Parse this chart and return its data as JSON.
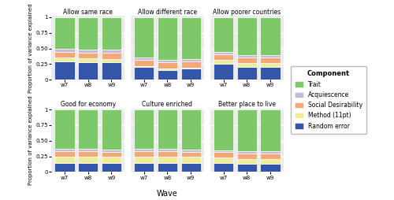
{
  "panels": [
    {
      "title": "Allow same race",
      "waves": [
        "w7",
        "w8",
        "w9"
      ],
      "random_error": [
        0.295,
        0.28,
        0.275
      ],
      "method_11pt": [
        0.06,
        0.06,
        0.06
      ],
      "social_desirability": [
        0.095,
        0.095,
        0.095
      ],
      "acquiescence": [
        0.05,
        0.05,
        0.05
      ],
      "trait": [
        0.5,
        0.515,
        0.52
      ]
    },
    {
      "title": "Allow different race",
      "waves": [
        "w7",
        "w8",
        "w9"
      ],
      "random_error": [
        0.2,
        0.16,
        0.175
      ],
      "method_11pt": [
        0.02,
        0.02,
        0.02
      ],
      "social_desirability": [
        0.095,
        0.095,
        0.095
      ],
      "acquiescence": [
        0.045,
        0.045,
        0.045
      ],
      "trait": [
        0.64,
        0.68,
        0.665
      ]
    },
    {
      "title": "Allow poorer countries",
      "waves": [
        "w7",
        "w8",
        "w9"
      ],
      "random_error": [
        0.25,
        0.2,
        0.2
      ],
      "method_11pt": [
        0.065,
        0.065,
        0.065
      ],
      "social_desirability": [
        0.095,
        0.095,
        0.095
      ],
      "acquiescence": [
        0.03,
        0.03,
        0.03
      ],
      "trait": [
        0.56,
        0.61,
        0.61
      ]
    },
    {
      "title": "Good for economy",
      "waves": [
        "w7",
        "w8",
        "w9"
      ],
      "random_error": [
        0.15,
        0.15,
        0.145
      ],
      "method_11pt": [
        0.095,
        0.095,
        0.095
      ],
      "social_desirability": [
        0.085,
        0.085,
        0.085
      ],
      "acquiescence": [
        0.04,
        0.04,
        0.04
      ],
      "trait": [
        0.63,
        0.63,
        0.635
      ]
    },
    {
      "title": "Culture enriched",
      "waves": [
        "w7",
        "w8",
        "w9"
      ],
      "random_error": [
        0.15,
        0.15,
        0.145
      ],
      "method_11pt": [
        0.095,
        0.095,
        0.095
      ],
      "social_desirability": [
        0.085,
        0.085,
        0.085
      ],
      "acquiescence": [
        0.04,
        0.04,
        0.04
      ],
      "trait": [
        0.63,
        0.63,
        0.635
      ]
    },
    {
      "title": "Better place to live",
      "waves": [
        "w7",
        "w8",
        "w9"
      ],
      "random_error": [
        0.15,
        0.13,
        0.13
      ],
      "method_11pt": [
        0.08,
        0.08,
        0.08
      ],
      "social_desirability": [
        0.085,
        0.085,
        0.085
      ],
      "acquiescence": [
        0.035,
        0.035,
        0.035
      ],
      "trait": [
        0.65,
        0.67,
        0.67
      ]
    }
  ],
  "colors": {
    "random_error": "#3355AA",
    "method_11pt": "#EEEE99",
    "social_desirability": "#F4A878",
    "acquiescence": "#C9B8D8",
    "trait": "#7DC96A"
  },
  "legend_labels": [
    "Trait",
    "Acquiescence",
    "Social Desirability",
    "Method (11pt)",
    "Random error"
  ],
  "legend_keys": [
    "trait",
    "acquiescence",
    "social_desirability",
    "method_11pt",
    "random_error"
  ],
  "ylabel": "Proportion of variance explained",
  "xlabel": "Wave",
  "legend_title": "Component",
  "background_color": "#FFFFFF",
  "panel_background": "#EBEBEB"
}
